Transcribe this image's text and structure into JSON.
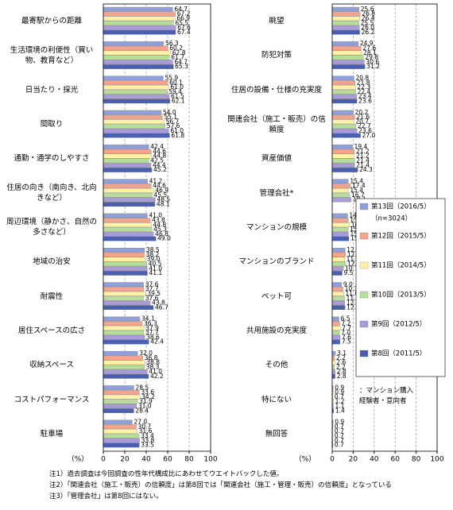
{
  "chart_data": [
    {
      "type": "bar",
      "orientation": "horizontal",
      "categories": [
        "最寄駅からの距離",
        "生活環境の利便性（買い物、教育など）",
        "日当たり・採光",
        "間取り",
        "通勤・通学のしやすさ",
        "住居の向き（南向き、北向きなど）",
        "周辺環境（静かさ、自然の多さなど）",
        "地域の治安",
        "耐震性",
        "居住スペースの広さ",
        "収納スペース",
        "コストパフォーマンス",
        "駐車場"
      ],
      "series": [
        {
          "color": "#8f9fd9",
          "values": [
            64.7,
            56.3,
            55.9,
            54.0,
            42.4,
            41.2,
            41.0,
            38.5,
            37.6,
            34.1,
            32.0,
            28.5,
            27.0
          ],
          "value_labels": [
            "64.7",
            "56.3",
            "55.9",
            "54.0",
            "42.4",
            "41.2",
            "41.0",
            "38.5",
            "37.6",
            "34.1",
            "32.0",
            "28.5",
            "27.0"
          ]
        },
        {
          "color": "#f4a48c",
          "values": [
            67.2,
            60.2,
            60.1,
            55.1,
            44.6,
            44.6,
            43.8,
            38.2,
            37.7,
            36.3,
            36.8,
            33.6,
            30.7
          ],
          "value_labels": [
            "67.2",
            "60.2",
            "60.1",
            "55.1",
            "44.6",
            "44.6",
            "43.8",
            "38.2",
            "37.7",
            "36.3",
            "36.8",
            "33.6",
            "30.7"
          ]
        },
        {
          "color": "#fff2a6",
          "values": [
            66.9,
            62.8,
            61.0,
            56.7,
            44.8,
            46.9,
            44.8,
            39.0,
            39.5,
            37.9,
            38.8,
            34.2,
            31.6
          ],
          "value_labels": [
            "66.9",
            "62.8",
            "61.0",
            "56.7",
            "44.8",
            "46.9",
            "44.8",
            "39.0",
            "39.5",
            "37.9",
            "38.8",
            "34.2",
            "31.6"
          ]
        },
        {
          "color": "#b7dd9a",
          "values": [
            65.5,
            61.7,
            59.4,
            57.6,
            42.5,
            45.5,
            45.3,
            40.5,
            37.6,
            37.7,
            38.3,
            31.9,
            33.4
          ],
          "value_labels": [
            "65.5",
            "61.7",
            "59.4",
            "57.6",
            "42.5",
            "45.5",
            "45.3",
            "40.5",
            "37.6",
            "37.7",
            "38.3",
            "31.9",
            "33.4"
          ]
        },
        {
          "color": "#a99ad8",
          "values": [
            67.6,
            64.7,
            61.5,
            61.0,
            44.4,
            48.5,
            46.8,
            41.0,
            43.8,
            38.6,
            41.0,
            31.0,
            33.8
          ],
          "value_labels": [
            "67.6",
            "64.7",
            "61.5",
            "61.0",
            "44.4",
            "48.5",
            "46.8",
            "41.0",
            "43.8",
            "38.6",
            "41.0",
            "31.0",
            "33.8"
          ]
        },
        {
          "color": "#4a5fae",
          "values": [
            67.4,
            65.3,
            62.1,
            61.8,
            45.2,
            48.1,
            49.0,
            41.1,
            46.7,
            42.4,
            42.2,
            28.4,
            33.5
          ],
          "value_labels": [
            "67.4",
            "65.3",
            "62.1",
            "61.8",
            "45.2",
            "48.1",
            "49.0",
            "41.1",
            "46.7",
            "42.4",
            "42.2",
            "28.4",
            "33.5"
          ]
        }
      ],
      "xlim": [
        0,
        100
      ],
      "xticks": [
        0,
        20,
        40,
        60,
        80,
        100
      ],
      "xlabel": "（%）",
      "grid": true
    },
    {
      "type": "bar",
      "orientation": "horizontal",
      "categories": [
        "眺望",
        "防犯対策",
        "住居の設備・仕様の充実度",
        "関連会社（施工・販売）の信頼度",
        "資産価値",
        "管理会社*",
        "マンションの規模",
        "マンションのブランド",
        "ペット可",
        "共用施設の充実度",
        "その他",
        "特にない",
        "無回答"
      ],
      "series": [
        {
          "name": "第13回（2016/5）",
          "color": "#8f9fd9",
          "values": [
            25.6,
            24.9,
            20.8,
            20.2,
            19.4,
            15.4,
            14.7,
            12.3,
            9.0,
            6.5,
            3.1,
            0.9,
            0.9
          ],
          "value_labels": [
            "25.6",
            "24.9",
            "20.8",
            "20.2",
            "19.4",
            "15.4",
            "14.7",
            "12.3",
            "9.0",
            "6.5",
            "3.1",
            "0.9",
            "0.9"
          ]
        },
        {
          "name": "第12回（2015/5）",
          "color": "#f4a48c",
          "values": [
            26.8,
            27.6,
            21.8,
            21.6,
            21.2,
            17.4,
            15.3,
            12.8,
            10.3,
            7.2,
            2.2,
            0.9,
            0.7
          ],
          "value_labels": [
            "26.8",
            "27.6",
            "21.8",
            "21.6",
            "21.2",
            "17.4",
            "15.3",
            "12.8",
            "10.3",
            "7.2",
            "2.2",
            "0.9",
            "0.7"
          ]
        },
        {
          "name": "第11回（2014/5）",
          "color": "#fff2a6",
          "values": [
            26.4,
            28.1,
            22.3,
            20.7,
            21.2,
            15.4,
            16.5,
            11.8,
            11.0,
            7.7,
            2.6,
            0.7,
            0.7
          ],
          "value_labels": [
            "26.4",
            "28.1",
            "22.3",
            "20.7",
            "21.2",
            "15.4",
            "16.5",
            "11.8",
            "11.0",
            "7.7",
            "2.6",
            "0.7",
            "0.7"
          ]
        },
        {
          "name": "第10回（2013/5）",
          "color": "#b7dd9a",
          "values": [
            25.5,
            29.8,
            22.4,
            22.7,
            21.4,
            16.7,
            15.2,
            12.9,
            11.8,
            7.0,
            2.2,
            1.2,
            0.7
          ],
          "value_labels": [
            "25.5",
            "29.8",
            "22.4",
            "22.7",
            "21.4",
            "16.7",
            "15.2",
            "12.9",
            "11.8",
            "7.0",
            "2.2",
            "1.2",
            "0.7"
          ]
        },
        {
          "name": "第9回（2012/5）",
          "color": "#a99ad8",
          "values": [
            26.0,
            30.6,
            23.4,
            23.6,
            21.4,
            18.1,
            15.5,
            10.7,
            12.0,
            7.6,
            2.8,
            1.1,
            0.7
          ],
          "value_labels": [
            "26.0",
            "30.6",
            "23.4",
            "23.6",
            "21.4",
            "18.1",
            "15.5",
            "10.7",
            "12.0",
            "7.6",
            "2.8",
            "1.1",
            "0.7"
          ]
        },
        {
          "name": "第8回（2011/5）",
          "color": "#4a5fae",
          "values": [
            26.2,
            31.2,
            23.6,
            27.0,
            24.3,
            null,
            15.9,
            9.5,
            12.2,
            7.5,
            2.8,
            1.4,
            0.7
          ],
          "value_labels": [
            "26.2",
            "31.2",
            "23.6",
            "27.0",
            "24.3",
            null,
            "15.9",
            "9.5",
            "12.2",
            "7.5",
            "2.8",
            "1.4",
            "0.7"
          ]
        }
      ],
      "xlim": [
        0,
        100
      ],
      "xticks": [
        0,
        20,
        40,
        60,
        80,
        100
      ],
      "xlabel": "（%）",
      "grid": true,
      "legend": "right",
      "legend_note": "（n=3024）",
      "annotation": "：マンション購入\n経験者・意向者"
    }
  ],
  "notes": [
    "注1）過去調査は今回調査の性年代構成比にあわせてウエイトバックした値。",
    "注2）「関連会社（施工・販売）の信頼度」は第8回では「関連会社（施工・管理・販売）の信頼度」となっている",
    "注3）「管理会社」は第8回にはない。"
  ]
}
